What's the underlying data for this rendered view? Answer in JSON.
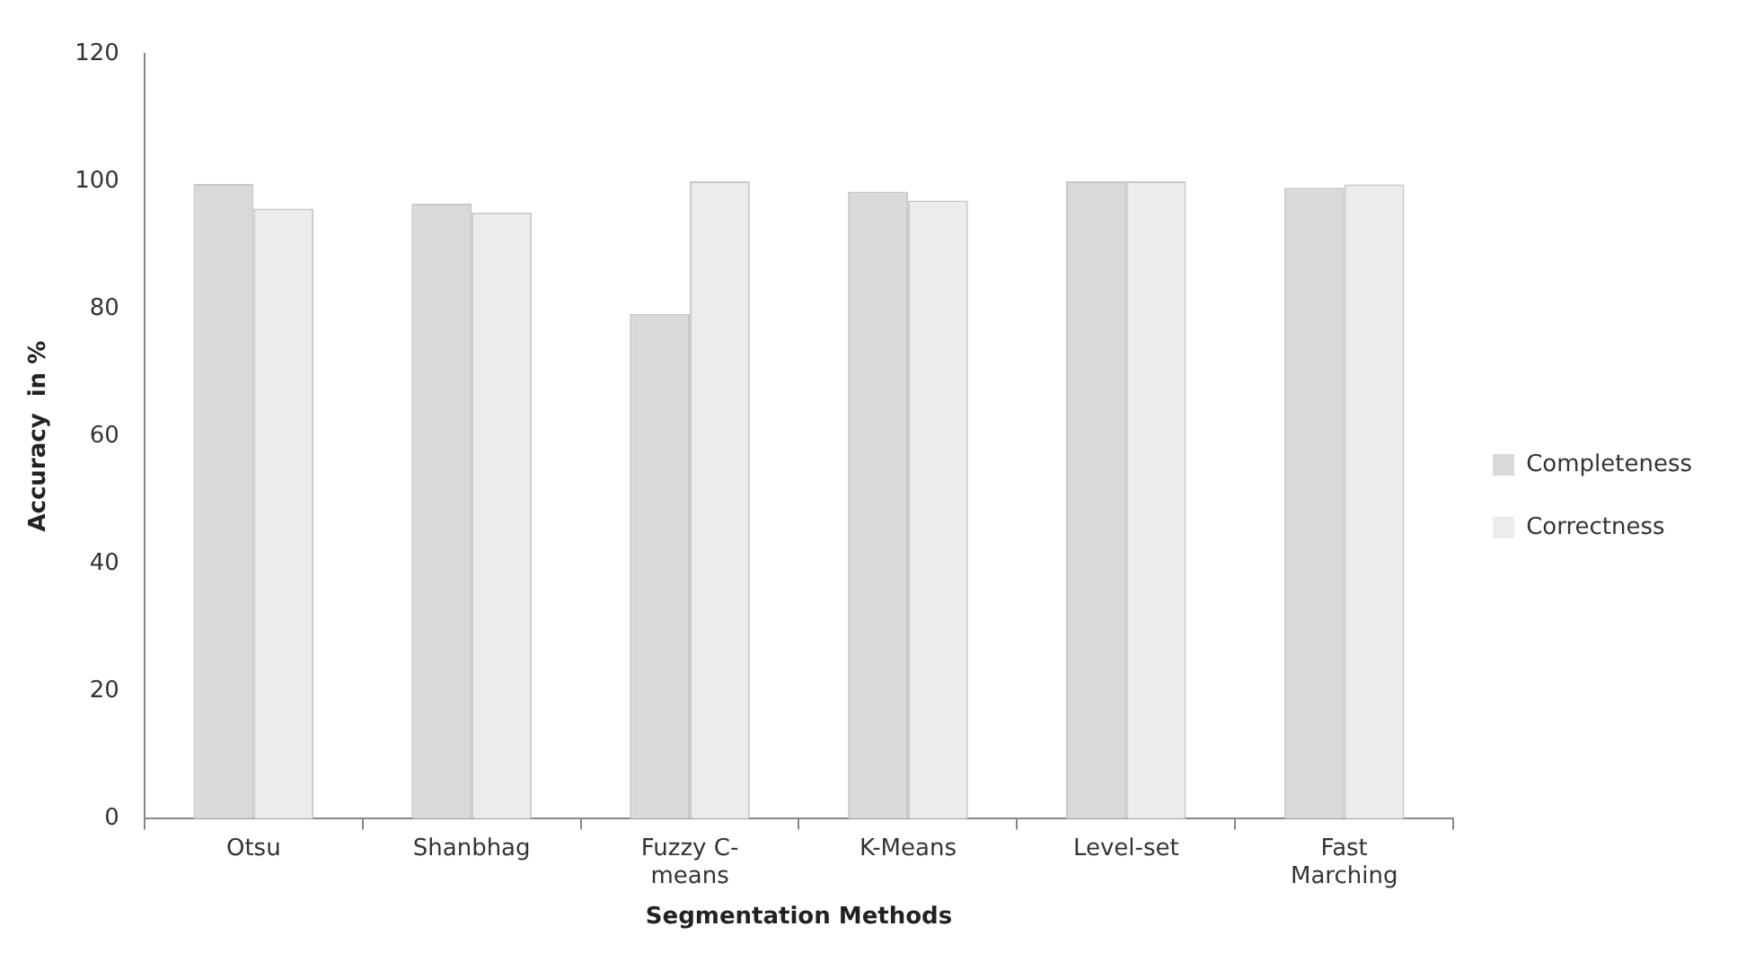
{
  "chart_data": {
    "type": "bar",
    "xlabel": "Segmentation Methods",
    "ylabel": "Accuracy  in %",
    "categories": [
      "Otsu",
      "Shanbhag",
      "Fuzzy C-means",
      "K-Means",
      "Level-set",
      "Fast Marching"
    ],
    "series": [
      {
        "name": "Completeness",
        "color": "#d9d9d9",
        "values": [
          99.6,
          96.5,
          79.2,
          98.4,
          100,
          99
        ]
      },
      {
        "name": "Correctness",
        "color": "#ececec",
        "values": [
          95.7,
          95.1,
          100,
          97,
          100,
          99.5
        ]
      }
    ],
    "ylim": [
      0,
      120
    ],
    "yticks": [
      0,
      20,
      40,
      60,
      80,
      100,
      120
    ],
    "grid": false,
    "legend": "right"
  }
}
